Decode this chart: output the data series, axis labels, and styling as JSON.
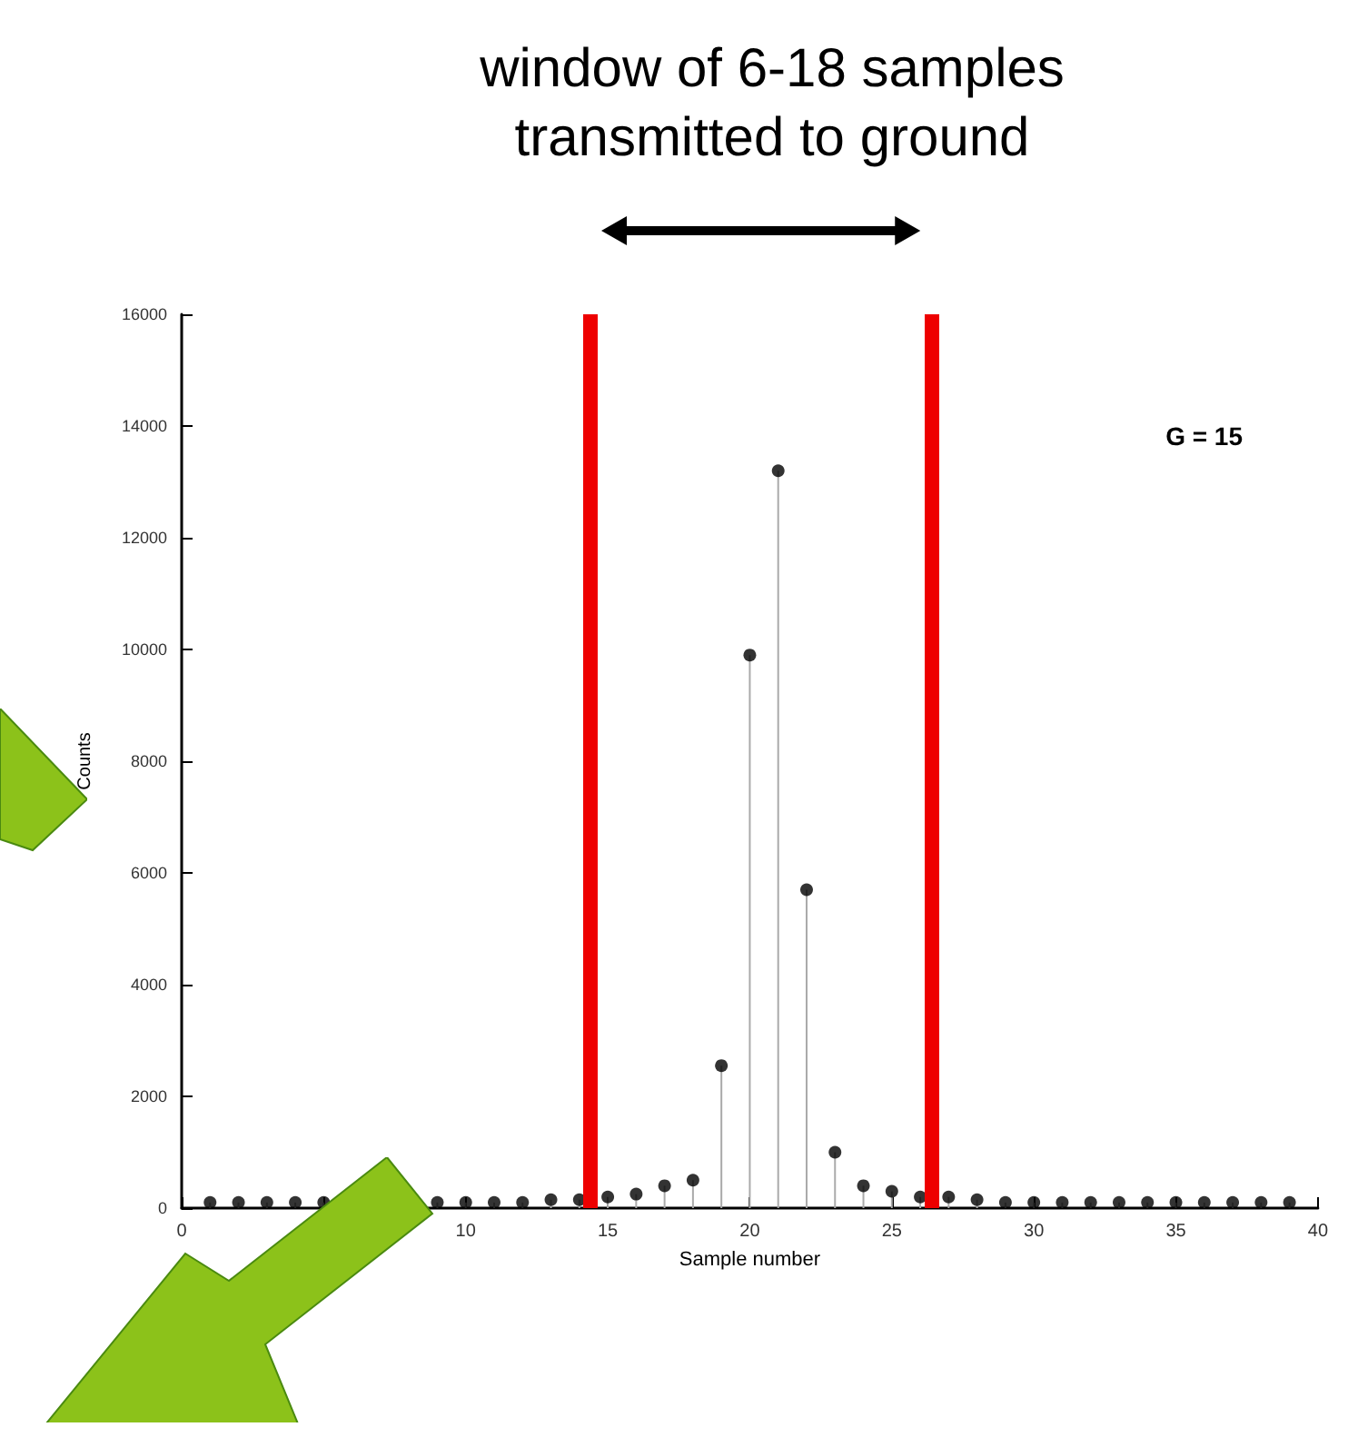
{
  "chart_data": {
    "type": "lollipop",
    "title": "window of 6-18 samples\ntransmitted to ground",
    "xlabel": "Sample number",
    "ylabel": "Counts",
    "x": [
      1,
      2,
      3,
      4,
      5,
      6,
      7,
      8,
      9,
      10,
      11,
      12,
      13,
      14,
      15,
      16,
      17,
      18,
      19,
      20,
      21,
      22,
      23,
      24,
      25,
      26,
      27,
      28,
      29,
      30,
      31,
      32,
      33,
      34,
      35,
      36,
      37,
      38,
      39
    ],
    "values": [
      100,
      100,
      100,
      100,
      100,
      null,
      null,
      null,
      100,
      100,
      100,
      100,
      150,
      150,
      200,
      250,
      400,
      500,
      2550,
      9900,
      13200,
      5700,
      1000,
      400,
      300,
      200,
      200,
      150,
      100,
      100,
      100,
      100,
      100,
      100,
      100,
      100,
      100,
      100,
      100
    ],
    "color": "#000000",
    "xlim": [
      0,
      40
    ],
    "xticks": [
      0,
      {
        "value": 5,
        "label": null
      },
      10,
      15,
      20,
      25,
      30,
      35,
      40
    ],
    "ylim": [
      0,
      16000
    ],
    "yticks": [
      0,
      2000,
      4000,
      6000,
      8000,
      10000,
      12000,
      14000,
      16000
    ],
    "ref_lines": [
      {
        "axis": "x",
        "value": 14.4,
        "color": "#ee0000"
      },
      {
        "axis": "x",
        "value": 26.4,
        "color": "#ee0000"
      }
    ],
    "annotations": [
      "G = 15"
    ],
    "marker": "circle",
    "grid": false
  }
}
